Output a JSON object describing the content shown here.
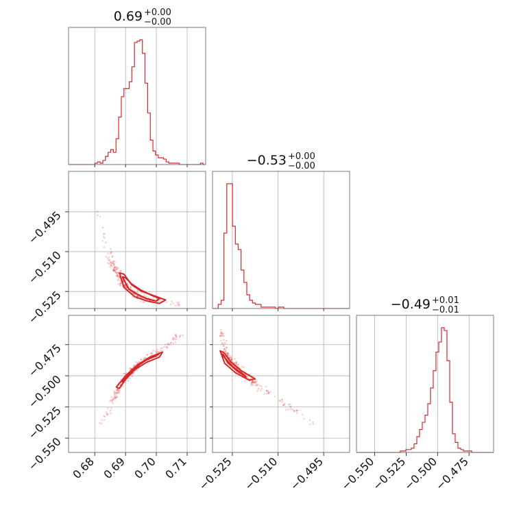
{
  "chart_data": {
    "type": "corner",
    "color": "#d62728",
    "grid": true,
    "parameters": [
      {
        "title": "0.69",
        "err_plus": "+0.00",
        "err_minus": "−0.00",
        "range": [
          0.6715,
          0.716
        ],
        "ticks": [
          0.68,
          0.69,
          0.7,
          0.71
        ],
        "tick_labels": [
          "0.68",
          "0.69",
          "0.70",
          "0.71"
        ]
      },
      {
        "title": "−0.53",
        "err_plus": "+0.00",
        "err_minus": "−0.00",
        "range": [
          -0.5315,
          -0.4865
        ],
        "ticks": [
          -0.525,
          -0.51,
          -0.495
        ],
        "tick_labels": [
          "−0.525",
          "−0.510",
          "−0.495"
        ],
        "y_range": [
          -0.5314,
          -0.4798
        ],
        "y_ticks": [
          -0.495,
          -0.51,
          -0.525
        ],
        "y_tick_labels": [
          "−0.495",
          "−0.510",
          "−0.525"
        ]
      },
      {
        "title": "−0.49",
        "err_plus": "+0.01",
        "err_minus": "−0.01",
        "range": [
          -0.5645,
          -0.4555
        ],
        "ticks": [
          -0.55,
          -0.525,
          -0.5,
          -0.475
        ],
        "tick_labels": [
          "−0.550",
          "−0.525",
          "−0.500",
          "−0.475"
        ],
        "y_range": [
          -0.5615,
          -0.4515
        ],
        "y_ticks": [
          -0.475,
          -0.5,
          -0.525,
          -0.55
        ],
        "y_tick_labels": [
          "−0.475",
          "−0.500",
          "−0.525",
          "−0.550"
        ]
      }
    ],
    "histograms": [
      {
        "bins": [
          0.6715,
          0.716
        ],
        "counts": [
          0,
          0,
          0,
          0,
          0,
          0,
          0,
          0,
          0,
          0,
          1,
          2,
          1,
          3,
          6,
          9,
          11,
          9,
          19,
          35,
          50,
          56,
          56,
          61,
          72,
          90,
          91,
          92,
          82,
          60,
          38,
          18,
          10,
          7,
          5,
          5,
          4,
          2,
          1,
          1,
          1,
          1,
          0,
          0,
          0,
          0,
          0,
          0,
          0,
          0,
          1,
          0
        ]
      },
      {
        "bins": [
          -0.5315,
          -0.4865
        ],
        "counts": [
          0,
          0,
          3,
          6,
          55,
          91,
          91,
          60,
          47,
          43,
          28,
          19,
          10,
          6,
          4,
          3,
          3,
          1,
          1,
          1,
          1,
          1,
          0,
          1,
          1,
          0,
          0,
          0,
          0,
          0,
          0,
          0,
          0,
          0,
          0,
          0,
          0,
          0,
          0,
          0,
          0,
          0,
          0,
          0,
          0,
          0,
          0,
          0
        ]
      },
      {
        "bins": [
          -0.5645,
          -0.4555
        ],
        "counts": [
          0,
          0,
          0,
          0,
          0,
          0,
          0,
          0,
          0,
          0,
          0,
          0,
          0,
          0,
          0,
          0,
          1,
          1,
          2,
          2,
          3,
          6,
          11,
          16,
          21,
          26,
          34,
          45,
          57,
          70,
          77,
          87,
          85,
          64,
          35,
          13,
          7,
          3,
          2,
          1,
          1,
          1,
          0,
          0,
          0,
          0,
          0,
          0,
          0,
          0
        ]
      }
    ],
    "scatter_2d": [
      {
        "panel": "param2_vs_param1",
        "x_range": [
          0.6715,
          0.716
        ],
        "y_range": [
          -0.5314,
          -0.4798
        ],
        "ridge_x": [
          0.681,
          0.685,
          0.688,
          0.69,
          0.693,
          0.696,
          0.7,
          0.704,
          0.708
        ],
        "ridge_y": [
          -0.495,
          -0.513,
          -0.5195,
          -0.523,
          -0.526,
          -0.5275,
          -0.5285,
          -0.5295,
          -0.53
        ],
        "contour_core": [
          [
            0.689,
            -0.5195
          ],
          [
            0.691,
            -0.524
          ],
          [
            0.694,
            -0.5262
          ],
          [
            0.697,
            -0.5278
          ],
          [
            0.7,
            -0.5286
          ],
          [
            0.701,
            -0.5276
          ],
          [
            0.698,
            -0.5262
          ],
          [
            0.695,
            -0.5245
          ],
          [
            0.692,
            -0.5222
          ],
          [
            0.69,
            -0.5198
          ]
        ],
        "contour_outer": [
          [
            0.688,
            -0.518
          ],
          [
            0.6895,
            -0.5235
          ],
          [
            0.693,
            -0.527
          ],
          [
            0.697,
            -0.5286
          ],
          [
            0.701,
            -0.5295
          ],
          [
            0.703,
            -0.5282
          ],
          [
            0.699,
            -0.5265
          ],
          [
            0.695,
            -0.5248
          ],
          [
            0.692,
            -0.5225
          ],
          [
            0.6895,
            -0.5185
          ]
        ]
      },
      {
        "panel": "param3_vs_param1",
        "x_range": [
          0.6715,
          0.716
        ],
        "y_range": [
          -0.5615,
          -0.4515
        ],
        "ridge_x": [
          0.682,
          0.686,
          0.689,
          0.692,
          0.695,
          0.698,
          0.702,
          0.705,
          0.708
        ],
        "ridge_y": [
          -0.54,
          -0.52,
          -0.505,
          -0.496,
          -0.489,
          -0.484,
          -0.478,
          -0.472,
          -0.466
        ],
        "contour_core": [
          [
            0.689,
            -0.504
          ],
          [
            0.692,
            -0.497
          ],
          [
            0.695,
            -0.49
          ],
          [
            0.698,
            -0.485
          ],
          [
            0.701,
            -0.482
          ],
          [
            0.7,
            -0.484
          ],
          [
            0.697,
            -0.487
          ],
          [
            0.694,
            -0.492
          ],
          [
            0.691,
            -0.499
          ],
          [
            0.689,
            -0.505
          ]
        ],
        "contour_outer": [
          [
            0.687,
            -0.509
          ],
          [
            0.69,
            -0.5
          ],
          [
            0.694,
            -0.491
          ],
          [
            0.698,
            -0.485
          ],
          [
            0.702,
            -0.481
          ],
          [
            0.701,
            -0.485
          ],
          [
            0.697,
            -0.489
          ],
          [
            0.693,
            -0.495
          ],
          [
            0.69,
            -0.503
          ],
          [
            0.688,
            -0.51
          ]
        ]
      },
      {
        "panel": "param3_vs_param2",
        "x_range": [
          -0.5315,
          -0.4865
        ],
        "y_range": [
          -0.5615,
          -0.4515
        ],
        "ridge_x": [
          -0.5288,
          -0.5275,
          -0.5255,
          -0.523,
          -0.52,
          -0.517,
          -0.513,
          -0.508,
          -0.504,
          -0.498
        ],
        "ridge_y": [
          -0.4635,
          -0.479,
          -0.488,
          -0.495,
          -0.501,
          -0.507,
          -0.514,
          -0.522,
          -0.529,
          -0.539
        ],
        "contour_core": [
          [
            -0.528,
            -0.483
          ],
          [
            -0.5265,
            -0.4895
          ],
          [
            -0.5235,
            -0.496
          ],
          [
            -0.5205,
            -0.501
          ],
          [
            -0.5215,
            -0.4985
          ],
          [
            -0.5245,
            -0.4935
          ],
          [
            -0.527,
            -0.487
          ],
          [
            -0.5285,
            -0.4825
          ]
        ],
        "contour_outer": [
          [
            -0.529,
            -0.48
          ],
          [
            -0.5275,
            -0.49
          ],
          [
            -0.524,
            -0.4975
          ],
          [
            -0.5195,
            -0.5035
          ],
          [
            -0.5175,
            -0.5025
          ],
          [
            -0.522,
            -0.496
          ],
          [
            -0.5255,
            -0.489
          ],
          [
            -0.5275,
            -0.482
          ]
        ]
      }
    ]
  }
}
